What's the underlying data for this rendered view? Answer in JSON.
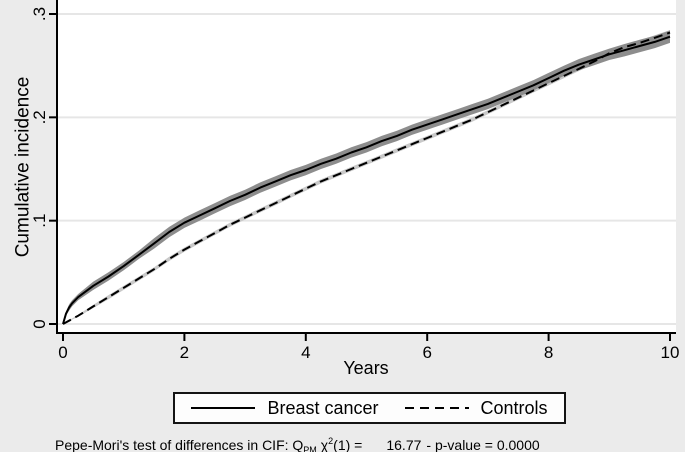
{
  "colors": {
    "background": "#ebebeb",
    "plot_background": "#ffffff",
    "gridline": "#e6e6e6",
    "axis": "#000000",
    "band_primary": "#8d8d8d",
    "band_secondary": "#c9c9c9",
    "line": "#000000"
  },
  "chart_data": {
    "type": "line",
    "title": "",
    "xlabel": "Years",
    "ylabel": "Cumulative incidence",
    "xlim": [
      0,
      10
    ],
    "ylim": [
      0,
      0.3
    ],
    "grid": "horizontal",
    "legend_position": "bottom",
    "xticks": {
      "values": [
        0,
        2,
        4,
        6,
        8,
        10
      ],
      "labels": [
        "0",
        "2",
        "4",
        "6",
        "8",
        "10"
      ]
    },
    "yticks": {
      "values": [
        0,
        0.1,
        0.2,
        0.3
      ],
      "labels": [
        "0",
        ".1",
        ".2",
        ".3"
      ]
    },
    "series": [
      {
        "name": "Breast cancer",
        "style": "solid",
        "color": "#000000",
        "band_color": "#8d8d8d",
        "x": [
          0,
          0.05,
          0.1,
          0.15,
          0.25,
          0.5,
          0.75,
          1,
          1.25,
          1.5,
          1.75,
          2,
          2.25,
          2.5,
          2.75,
          3,
          3.25,
          3.5,
          3.75,
          4,
          4.25,
          4.5,
          4.75,
          5,
          5.25,
          5.5,
          5.75,
          6,
          6.25,
          6.5,
          6.75,
          7,
          7.25,
          7.5,
          7.75,
          8,
          8.25,
          8.5,
          8.75,
          9,
          9.25,
          9.5,
          9.75,
          10
        ],
        "y": [
          0,
          0.01,
          0.016,
          0.02,
          0.026,
          0.037,
          0.046,
          0.056,
          0.067,
          0.078,
          0.089,
          0.098,
          0.105,
          0.112,
          0.119,
          0.125,
          0.132,
          0.138,
          0.144,
          0.149,
          0.155,
          0.16,
          0.166,
          0.171,
          0.177,
          0.182,
          0.188,
          0.193,
          0.198,
          0.203,
          0.208,
          0.213,
          0.219,
          0.225,
          0.231,
          0.238,
          0.245,
          0.251,
          0.256,
          0.261,
          0.265,
          0.269,
          0.273,
          0.278
        ],
        "ci_half": [
          0,
          0.002,
          0.003,
          0.003,
          0.003,
          0.004,
          0.004,
          0.004,
          0.004,
          0.005,
          0.005,
          0.005,
          0.005,
          0.005,
          0.005,
          0.005,
          0.005,
          0.005,
          0.005,
          0.005,
          0.005,
          0.005,
          0.005,
          0.005,
          0.005,
          0.005,
          0.005,
          0.005,
          0.005,
          0.005,
          0.005,
          0.005,
          0.005,
          0.005,
          0.005,
          0.005,
          0.005,
          0.0055,
          0.0055,
          0.0055,
          0.006,
          0.006,
          0.006,
          0.006
        ]
      },
      {
        "name": "Controls",
        "style": "dashed",
        "color": "#000000",
        "band_color": "#c9c9c9",
        "x": [
          0,
          0.25,
          0.5,
          0.75,
          1,
          1.25,
          1.5,
          1.75,
          2,
          2.25,
          2.5,
          2.75,
          3,
          3.25,
          3.5,
          3.75,
          4,
          4.25,
          4.5,
          4.75,
          5,
          5.25,
          5.5,
          5.75,
          6,
          6.25,
          6.5,
          6.75,
          7,
          7.25,
          7.5,
          7.75,
          8,
          8.25,
          8.5,
          8.75,
          9,
          9.25,
          9.5,
          9.75,
          10
        ],
        "y": [
          0,
          0.008,
          0.017,
          0.026,
          0.035,
          0.044,
          0.053,
          0.063,
          0.072,
          0.08,
          0.088,
          0.096,
          0.103,
          0.11,
          0.117,
          0.124,
          0.131,
          0.138,
          0.144,
          0.15,
          0.156,
          0.162,
          0.168,
          0.174,
          0.18,
          0.186,
          0.192,
          0.198,
          0.205,
          0.212,
          0.219,
          0.226,
          0.233,
          0.24,
          0.247,
          0.254,
          0.262,
          0.268,
          0.272,
          0.277,
          0.282
        ],
        "ci_half": [
          0,
          0.001,
          0.0015,
          0.002,
          0.002,
          0.002,
          0.002,
          0.002,
          0.002,
          0.002,
          0.002,
          0.002,
          0.002,
          0.002,
          0.002,
          0.002,
          0.002,
          0.002,
          0.002,
          0.002,
          0.002,
          0.002,
          0.002,
          0.002,
          0.002,
          0.002,
          0.002,
          0.002,
          0.002,
          0.002,
          0.002,
          0.002,
          0.0022,
          0.0022,
          0.0022,
          0.0025,
          0.0025,
          0.0025,
          0.0025,
          0.0025,
          0.0025
        ]
      }
    ]
  },
  "legend": {
    "items": [
      {
        "label": "Breast cancer",
        "line": "solid"
      },
      {
        "label": "Controls",
        "line": "dashed"
      }
    ]
  },
  "footnote": {
    "prefix": "Pepe-Mori's test of differences in CIF: Q",
    "subscript": "PM",
    "chi": "χ",
    "superscript": "2",
    "mid": "(1) =",
    "value": "16.77",
    "suffix": "- p-value = 0.0000"
  }
}
